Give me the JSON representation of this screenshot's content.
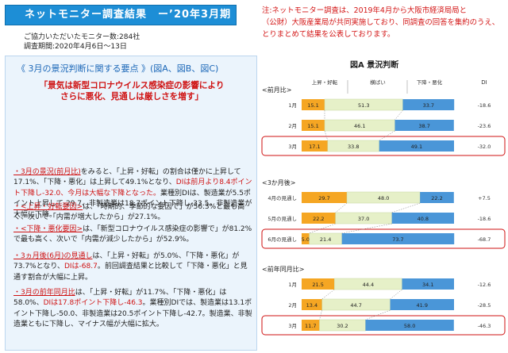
{
  "header": {
    "banner": "ネットモニター調査結果　ー’20年3月期　ー",
    "note": [
      "注:ネットモニター調査は、2019年4月から大阪市経済局局と",
      "（公財）大阪産業局が共同実施しており、同調査の回答を集約のうえ、",
      "とりまとめて結果を公表しております。"
    ],
    "monitors": "ご協力いただいたモニター数:284社",
    "period": "調査期間:2020年4月6日～13日"
  },
  "left": {
    "title": "《 3月の景況判断に関する要点 》(図A、図B、図C)",
    "headline": [
      "「景気は新型コロナウイルス感染症の影響により",
      "さらに悪化、見通しは厳しさを増す」"
    ]
  },
  "paragraphs": [
    {
      "segs": [
        [
          "r u",
          "・3月の景況(前月比)"
        ],
        [
          "",
          "をみると、「上昇・好転」の割合は僅かに上昇して17.1%、「下降・悪化」は上昇して49.1%となり、"
        ],
        [
          "r",
          "DIは前月より8.4ポイント下降し-32.0、今月は大幅な下降となった。"
        ],
        [
          "",
          "業種別DIは、製造業が5.5ポイント上昇して-29.7、非製造業は18.7ポイント下降し-33.5。非製造業が大幅に下降。"
        ]
      ]
    },
    {
      "segs": [
        [
          "r u",
          "・<上昇・好転要因>"
        ],
        [
          "",
          "は、「時期的、季節的な要因で」が56.3%と最も高く、次いで「内需が増大したから」が27.1%。"
        ]
      ]
    },
    {
      "segs": [
        [
          "r u",
          "・<下降・悪化要因>"
        ],
        [
          "",
          "は、「新型コロナウイルス感染症の影響で」が81.2%で最も高く、次いで「内需が減少したから」が52.9%。"
        ]
      ]
    },
    {
      "segs": [
        [
          "r u",
          "・3ヵ月後(6月)の見通し"
        ],
        [
          "",
          "は、「上昇・好転」が5.0%、「下降・悪化」が73.7%となり、"
        ],
        [
          "r",
          "DIは-68.7"
        ],
        [
          "",
          "。前回調査結果と比較して「下降・悪化」と見通す割合が大幅に上昇。"
        ]
      ]
    },
    {
      "segs": [
        [
          "r u",
          "・3月の前年同月比"
        ],
        [
          "",
          "は、「上昇・好転」が11.7%、「下降・悪化」は58.0%、"
        ],
        [
          "r",
          "DIは17.8ポイント下降し-46.3"
        ],
        [
          "",
          "。業種別DIでは、製造業は13.1ポイント下降し-50.0、非製造業は20.5ポイント下降し-42.7。製造業、非製造業ともに下降し、マイナス幅が大幅に拡大。"
        ]
      ]
    }
  ],
  "colors": {
    "up": "#f5a623",
    "flat": "#e6f0c8",
    "down": "#4a96d8",
    "accent": "#cf1212",
    "banner": "#1d8ed6"
  },
  "chart_data": {
    "type": "bar",
    "title": "図A 景況判断",
    "stacked": "horizontal-100%",
    "legend": [
      "上昇・好転",
      "横ばい",
      "下降・悪化"
    ],
    "di_label": "DI",
    "groups": [
      {
        "title": "<前月比>",
        "rows": [
          {
            "label": "1月",
            "values": [
              15.1,
              51.3,
              33.7
            ],
            "di": "-18.6",
            "highlight": false
          },
          {
            "label": "2月",
            "values": [
              15.1,
              46.1,
              38.7
            ],
            "di": "-23.6",
            "highlight": false
          },
          {
            "label": "3月",
            "values": [
              17.1,
              33.8,
              49.1
            ],
            "di": "-32.0",
            "highlight": true
          }
        ]
      },
      {
        "title": "<3か月後>",
        "rows": [
          {
            "label": "4月の見通し",
            "values": [
              29.7,
              48.0,
              22.2
            ],
            "di": "+7.5",
            "highlight": false
          },
          {
            "label": "5月の見通し",
            "values": [
              22.2,
              37.0,
              40.8
            ],
            "di": "-18.6",
            "highlight": false
          },
          {
            "label": "6月の見通し",
            "values": [
              5.0,
              21.4,
              73.7
            ],
            "di": "-68.7",
            "highlight": true
          }
        ]
      },
      {
        "title": "<前年同月比>",
        "rows": [
          {
            "label": "1月",
            "values": [
              21.5,
              44.4,
              34.1
            ],
            "di": "-12.6",
            "highlight": false
          },
          {
            "label": "2月",
            "values": [
              13.4,
              44.7,
              41.9
            ],
            "di": "-28.5",
            "highlight": false
          },
          {
            "label": "3月",
            "values": [
              11.7,
              30.2,
              58.0
            ],
            "di": "-46.3",
            "highlight": true
          }
        ]
      }
    ]
  }
}
